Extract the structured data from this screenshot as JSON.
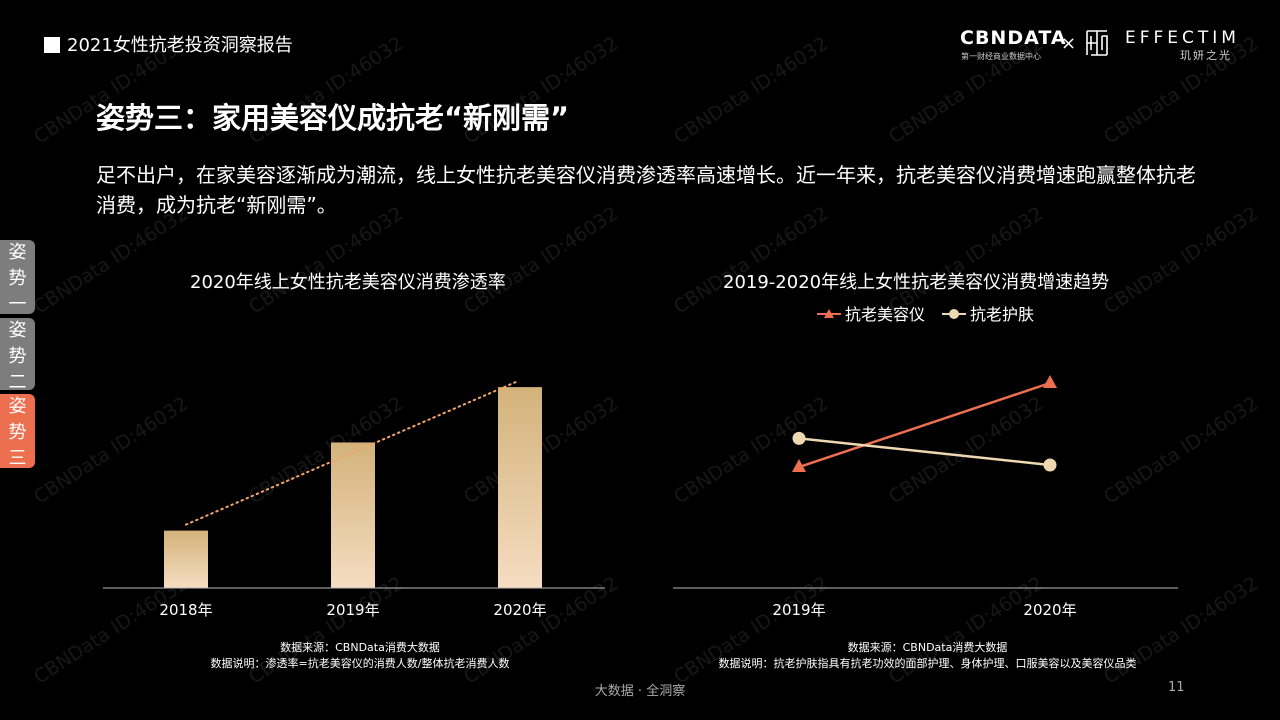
{
  "header": {
    "report_title": "2021女性抗老投资洞察报告",
    "logo_cbndata": "CBNDATA",
    "logo_cbndata_sub": "第一财经商业数据中心",
    "logo_times": "×",
    "logo_effectim": "EFFECTIM",
    "logo_effectim_sub": "玑妍之光"
  },
  "headline": "姿势三：家用美容仪成抗老“新刚需”",
  "description": "足不出户，在家美容逐渐成为潮流，线上女性抗老美容仪消费渗透率高速增长。近一年来，抗老美容仪消费增速跑赢整体抗老消费，成为抗老“新刚需”。",
  "side_tabs": [
    {
      "line1": "姿",
      "line2": "势",
      "line3": "一"
    },
    {
      "line1": "姿",
      "line2": "势",
      "line3": "二"
    },
    {
      "line1": "姿",
      "line2": "势",
      "line3": "三"
    }
  ],
  "colors": {
    "accent_orange": "#EC6F4F",
    "bar_gold_top": "#D3B27A",
    "bar_gold_bottom": "#F6DDC2",
    "skincare_line": "#EDD8B0",
    "tab_gray": "#7D7D7D"
  },
  "chart_data": [
    {
      "type": "bar",
      "title": "2020年线上女性抗老美容仪消费渗透率",
      "categories": [
        "2018年",
        "2019年",
        "2020年"
      ],
      "values": [
        28,
        71,
        98
      ],
      "ylim": [
        0,
        100
      ],
      "trendline": true,
      "trendline_style": "dotted",
      "grid": false,
      "note_source": "数据来源：CBNData消费大数据",
      "note_explain": "数据说明：渗透率=抗老美容仪的消费人数/整体抗老消费人数"
    },
    {
      "type": "line",
      "title": "2019-2020年线上女性抗老美容仪消费增速趋势",
      "categories": [
        "2019年",
        "2020年"
      ],
      "series": [
        {
          "name": "抗老美容仪",
          "values": [
            59,
            100
          ],
          "marker": "triangle",
          "color": "#EC6F4F"
        },
        {
          "name": "抗老护肤",
          "values": [
            73,
            60
          ],
          "marker": "circle",
          "color": "#EDD8B0"
        }
      ],
      "ylim": [
        0,
        100
      ],
      "legend_position": "top",
      "grid": false,
      "note_source": "数据来源：CBNData消费大数据",
      "note_explain": "数据说明：抗老护肤指具有抗老功效的面部护理、身体护理、口服美容以及美容仪品类"
    }
  ],
  "footer": {
    "center_text": "大数据 · 全洞察",
    "page_number": "11"
  },
  "watermark_text": "CBNData ID:46032"
}
